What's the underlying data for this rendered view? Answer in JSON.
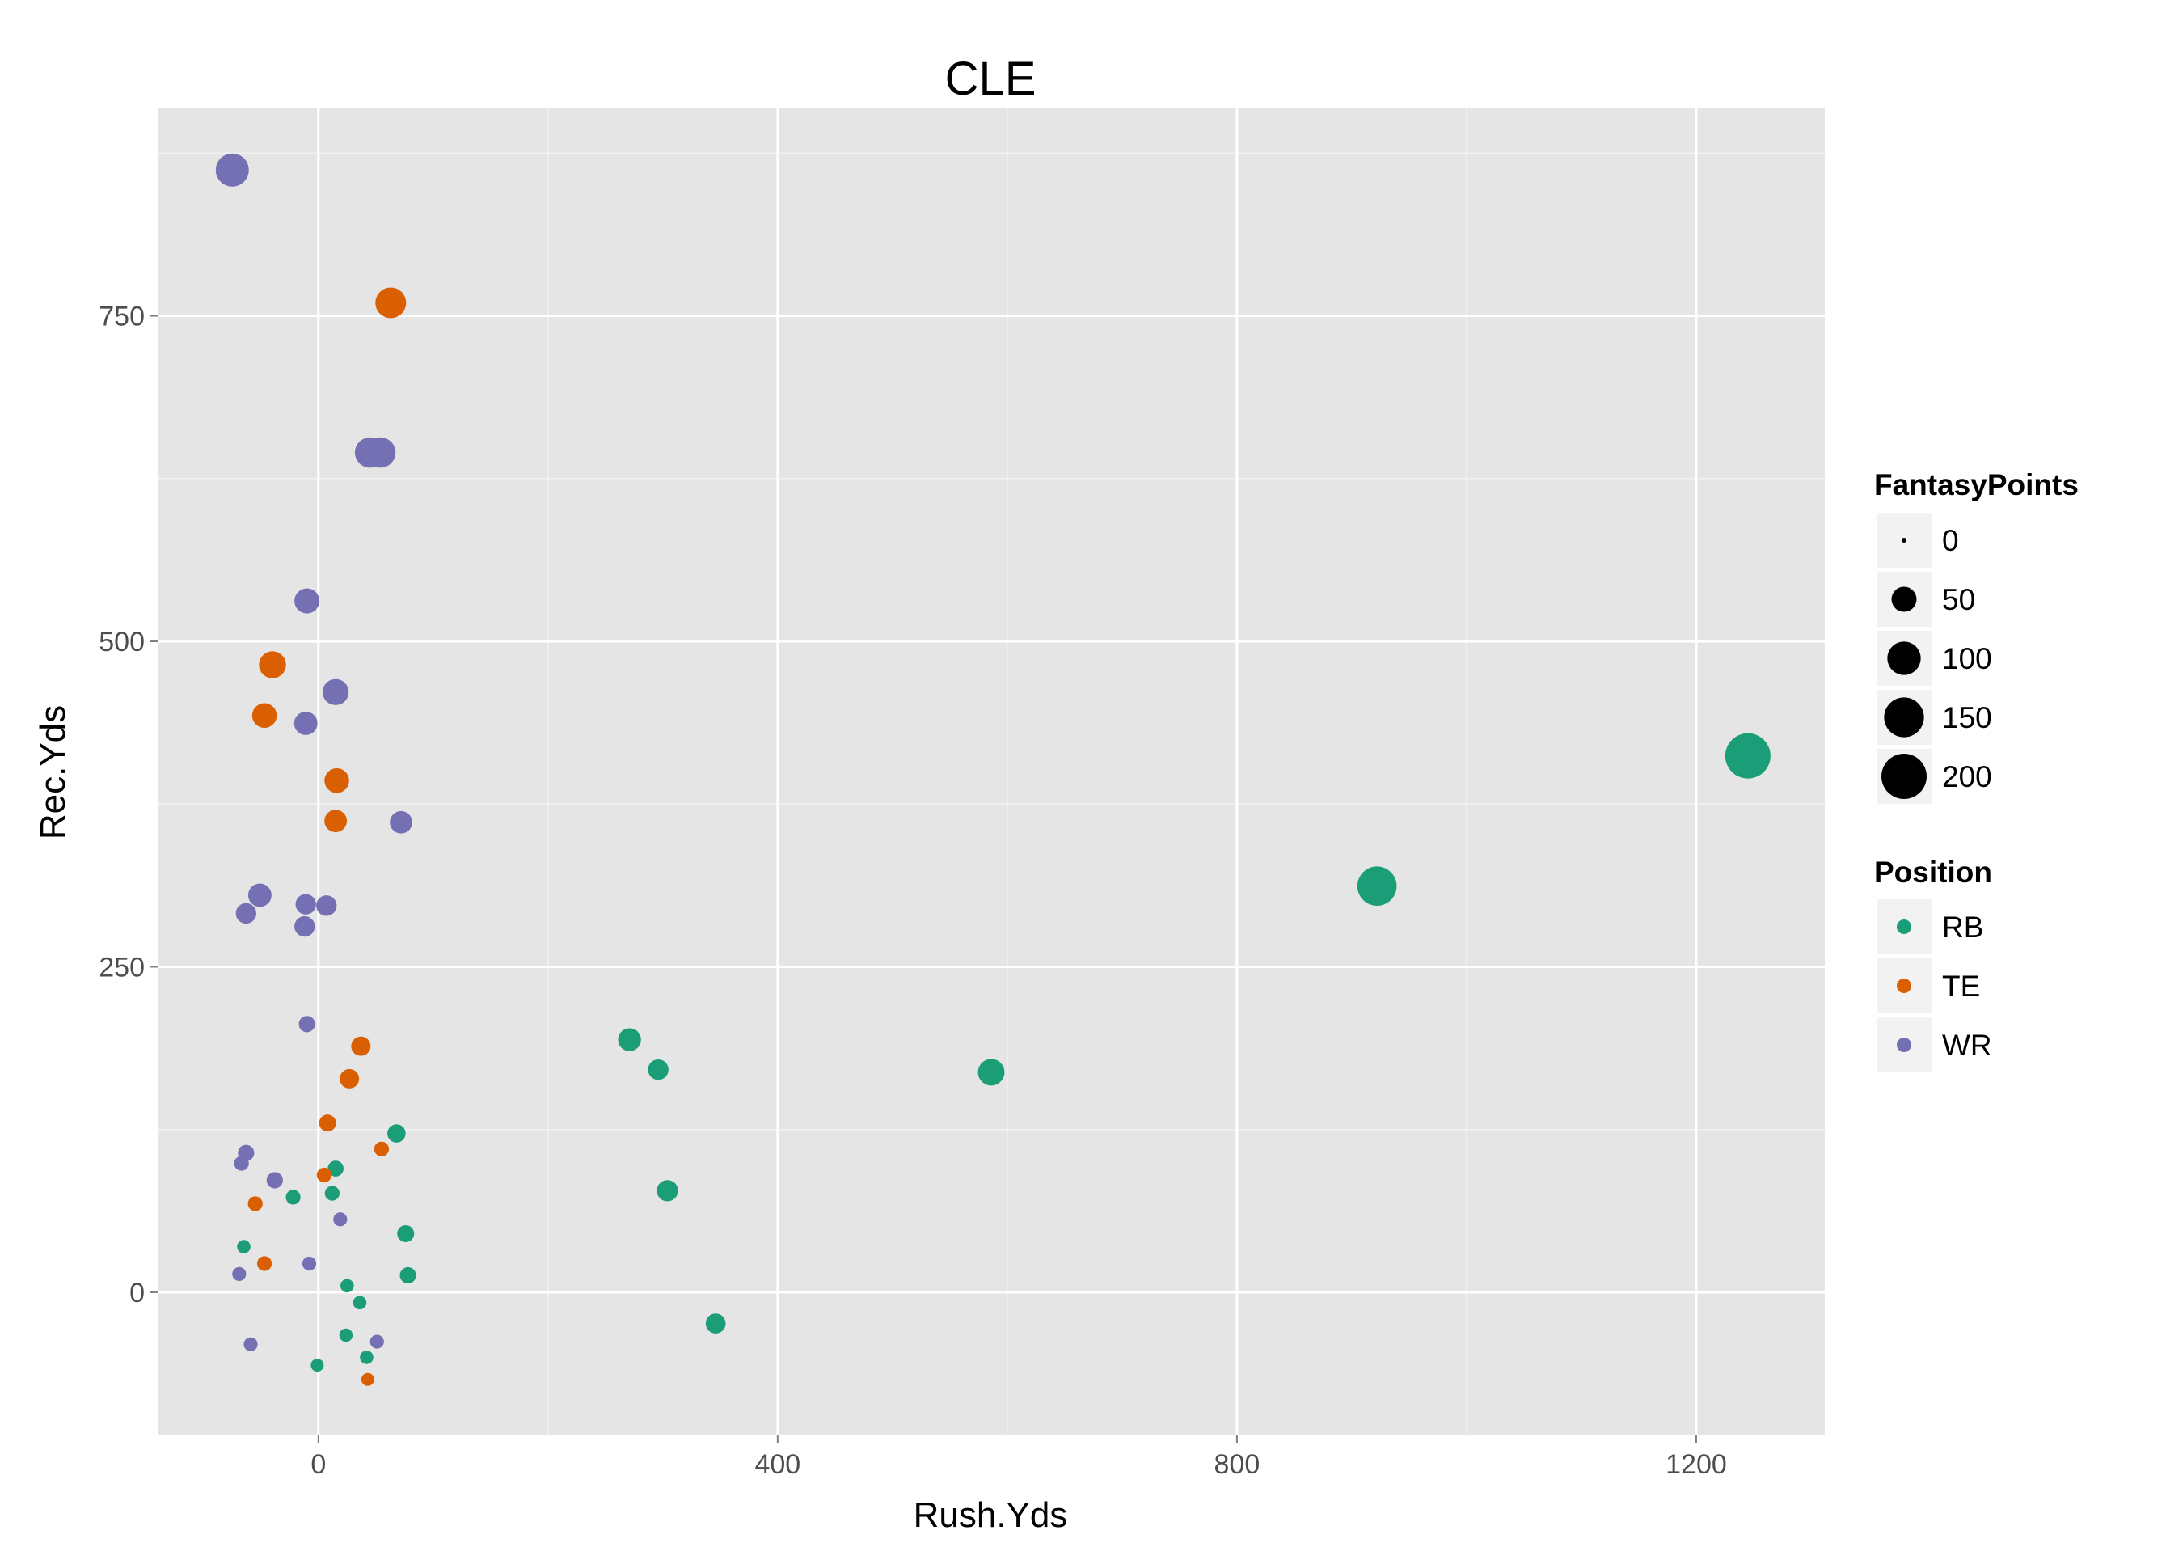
{
  "chart_data": {
    "type": "scatter",
    "title": "CLE",
    "xlabel": "Rush.Yds",
    "ylabel": "Rec.Yds",
    "xlim": [
      -140,
      1312
    ],
    "ylim": [
      -110,
      910
    ],
    "x_ticks": [
      0,
      400,
      800,
      1200
    ],
    "y_ticks": [
      0,
      250,
      500,
      750
    ],
    "x_tick_labels": [
      "0",
      "400",
      "800",
      "1200"
    ],
    "y_tick_labels": [
      "0",
      "250",
      "500",
      "750"
    ],
    "grid": true,
    "legend_placement": "right",
    "size_legend": {
      "title": "FantasyPoints",
      "values": [
        0,
        50,
        100,
        150,
        200
      ],
      "labels": [
        "0",
        "50",
        "100",
        "150",
        "200"
      ]
    },
    "color_legend": {
      "title": "Position",
      "entries": [
        {
          "name": "RB",
          "color": "#1b9e77"
        },
        {
          "name": "TE",
          "color": "#d95f02"
        },
        {
          "name": "WR",
          "color": "#7570b3"
        }
      ]
    },
    "series": [
      {
        "name": "RB",
        "color": "#1b9e77",
        "points": [
          {
            "x": 1245,
            "y": 412,
            "size": 200
          },
          {
            "x": 922,
            "y": 312,
            "size": 145
          },
          {
            "x": 586,
            "y": 169,
            "size": 58
          },
          {
            "x": 271,
            "y": 194,
            "size": 40
          },
          {
            "x": 296,
            "y": 171,
            "size": 30
          },
          {
            "x": 304,
            "y": 78,
            "size": 33
          },
          {
            "x": 346,
            "y": -24,
            "size": 28
          },
          {
            "x": 68,
            "y": 122,
            "size": 22
          },
          {
            "x": 15,
            "y": 95,
            "size": 15
          },
          {
            "x": 12,
            "y": 76,
            "size": 12
          },
          {
            "x": -22,
            "y": 73,
            "size": 12
          },
          {
            "x": 76,
            "y": 45,
            "size": 18
          },
          {
            "x": 78,
            "y": 13,
            "size": 16
          },
          {
            "x": -65,
            "y": 35,
            "size": 9
          },
          {
            "x": 25,
            "y": 5,
            "size": 9
          },
          {
            "x": 36,
            "y": -8,
            "size": 9
          },
          {
            "x": 24,
            "y": -33,
            "size": 9
          },
          {
            "x": 42,
            "y": -50,
            "size": 9
          },
          {
            "x": -1,
            "y": -56,
            "size": 8
          }
        ]
      },
      {
        "name": "TE",
        "color": "#d95f02",
        "points": [
          {
            "x": 63,
            "y": 760,
            "size": 82
          },
          {
            "x": -40,
            "y": 482,
            "size": 60
          },
          {
            "x": -47,
            "y": 443,
            "size": 48
          },
          {
            "x": 16,
            "y": 393,
            "size": 48
          },
          {
            "x": 15,
            "y": 362,
            "size": 38
          },
          {
            "x": 37,
            "y": 189,
            "size": 26
          },
          {
            "x": 27,
            "y": 164,
            "size": 26
          },
          {
            "x": 8,
            "y": 130,
            "size": 18
          },
          {
            "x": 55,
            "y": 110,
            "size": 12
          },
          {
            "x": 5,
            "y": 90,
            "size": 12
          },
          {
            "x": -55,
            "y": 68,
            "size": 12
          },
          {
            "x": -47,
            "y": 22,
            "size": 12
          },
          {
            "x": 43,
            "y": -67,
            "size": 8
          }
        ]
      },
      {
        "name": "WR",
        "color": "#7570b3",
        "points": [
          {
            "x": -75,
            "y": 862,
            "size": 98
          },
          {
            "x": 45,
            "y": 645,
            "size": 80
          },
          {
            "x": 54,
            "y": 645,
            "size": 80
          },
          {
            "x": -10,
            "y": 531,
            "size": 50
          },
          {
            "x": 15,
            "y": 461,
            "size": 55
          },
          {
            "x": -11,
            "y": 437,
            "size": 42
          },
          {
            "x": 72,
            "y": 361,
            "size": 38
          },
          {
            "x": -51,
            "y": 305,
            "size": 42
          },
          {
            "x": -63,
            "y": 291,
            "size": 30
          },
          {
            "x": -11,
            "y": 298,
            "size": 30
          },
          {
            "x": 7,
            "y": 297,
            "size": 30
          },
          {
            "x": -12,
            "y": 281,
            "size": 30
          },
          {
            "x": -10,
            "y": 206,
            "size": 16
          },
          {
            "x": -63,
            "y": 107,
            "size": 16
          },
          {
            "x": -67,
            "y": 99,
            "size": 12
          },
          {
            "x": -38,
            "y": 86,
            "size": 16
          },
          {
            "x": 19,
            "y": 56,
            "size": 10
          },
          {
            "x": -8,
            "y": 22,
            "size": 10
          },
          {
            "x": -69,
            "y": 14,
            "size": 10
          },
          {
            "x": -59,
            "y": -40,
            "size": 10
          },
          {
            "x": 51,
            "y": -38,
            "size": 10
          }
        ]
      }
    ]
  }
}
